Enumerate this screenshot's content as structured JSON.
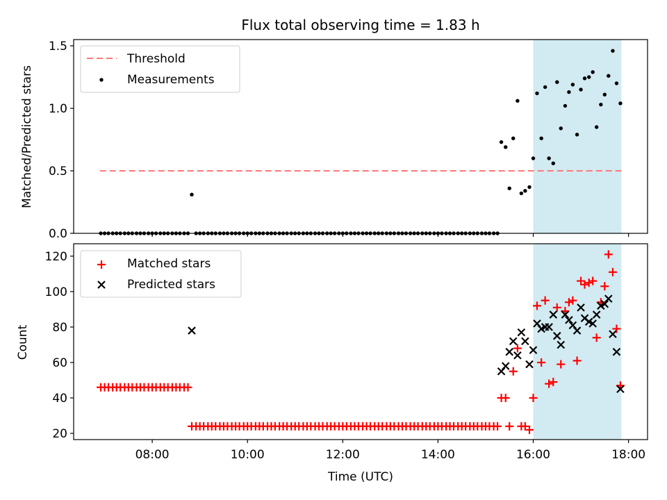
{
  "figure": {
    "title": "Flux total observing time = 1.83 h",
    "xlabel": "Time (UTC)",
    "x_ticks": [
      "08:00",
      "10:00",
      "12:00",
      "14:00",
      "16:00",
      "18:00"
    ],
    "x_tick_hours": [
      8,
      10,
      12,
      14,
      16,
      18
    ],
    "xlim_hours": [
      6.35,
      18.4
    ],
    "shaded_span_hours": [
      16.0,
      17.85
    ],
    "colors": {
      "shade": "#add8e6",
      "threshold": "#ff7777",
      "matched": "#ff0000",
      "predicted": "#000000",
      "measurement": "#000000"
    }
  },
  "chart_data": [
    {
      "type": "scatter",
      "ylabel": "Matched/Predicted stars",
      "ylim": [
        0,
        1.55
      ],
      "y_ticks": [
        "0.0",
        "0.5",
        "1.0",
        "1.5"
      ],
      "y_tick_values": [
        0,
        0.5,
        1.0,
        1.5
      ],
      "legend": {
        "placement": "top-left",
        "entries": [
          "Threshold",
          "Measurements"
        ]
      },
      "threshold": {
        "name": "Threshold",
        "y": 0.5,
        "x_range": [
          6.9,
          17.85
        ]
      },
      "series": [
        {
          "name": "Measurements",
          "x": [
            6.92,
            7.0,
            7.08,
            7.17,
            7.25,
            7.33,
            7.42,
            7.5,
            7.58,
            7.67,
            7.75,
            7.83,
            7.92,
            8.0,
            8.08,
            8.17,
            8.25,
            8.33,
            8.42,
            8.5,
            8.58,
            8.67,
            8.75,
            8.83,
            8.92,
            9.0,
            9.08,
            9.17,
            9.25,
            9.33,
            9.42,
            9.5,
            9.58,
            9.67,
            9.75,
            9.83,
            9.92,
            10.0,
            10.08,
            10.17,
            10.25,
            10.33,
            10.42,
            10.5,
            10.58,
            10.67,
            10.75,
            10.83,
            10.92,
            11.0,
            11.08,
            11.17,
            11.25,
            11.33,
            11.42,
            11.5,
            11.58,
            11.67,
            11.75,
            11.83,
            11.92,
            12.0,
            12.08,
            12.17,
            12.25,
            12.33,
            12.42,
            12.5,
            12.58,
            12.67,
            12.75,
            12.83,
            12.92,
            13.0,
            13.08,
            13.17,
            13.25,
            13.33,
            13.42,
            13.5,
            13.58,
            13.67,
            13.75,
            13.83,
            13.92,
            14.0,
            14.08,
            14.17,
            14.25,
            14.33,
            14.42,
            14.5,
            14.58,
            14.67,
            14.75,
            14.83,
            14.92,
            15.0,
            15.08,
            15.17,
            15.25,
            15.33,
            15.42,
            15.5,
            15.58,
            15.67,
            15.75,
            15.83,
            15.92,
            16.0,
            16.08,
            16.17,
            16.25,
            16.33,
            16.42,
            16.5,
            16.58,
            16.67,
            16.75,
            16.83,
            16.92,
            17.0,
            17.08,
            17.17,
            17.25,
            17.33,
            17.42,
            17.5,
            17.58,
            17.67,
            17.75,
            17.83
          ],
          "values": [
            0,
            0,
            0,
            0,
            0,
            0,
            0,
            0,
            0,
            0,
            0,
            0,
            0,
            0,
            0,
            0,
            0,
            0,
            0,
            0,
            0,
            0,
            0,
            0.31,
            0,
            0,
            0,
            0,
            0,
            0,
            0,
            0,
            0,
            0,
            0,
            0,
            0,
            0,
            0,
            0,
            0,
            0,
            0,
            0,
            0,
            0,
            0,
            0,
            0,
            0,
            0,
            0,
            0,
            0,
            0,
            0,
            0,
            0,
            0,
            0,
            0,
            0,
            0,
            0,
            0,
            0,
            0,
            0,
            0,
            0,
            0,
            0,
            0,
            0,
            0,
            0,
            0,
            0,
            0,
            0,
            0,
            0,
            0,
            0,
            0,
            0,
            0,
            0,
            0,
            0,
            0,
            0,
            0,
            0,
            0,
            0,
            0,
            0,
            0,
            0,
            0,
            0.73,
            0.69,
            0.36,
            0.76,
            1.06,
            0.32,
            0.34,
            0.37,
            0.6,
            1.12,
            0.76,
            1.17,
            0.6,
            0.56,
            1.21,
            0.84,
            1.02,
            1.13,
            1.19,
            0.79,
            1.15,
            1.24,
            1.25,
            1.29,
            0.85,
            1.03,
            1.11,
            1.26,
            1.46,
            1.2,
            1.04
          ]
        }
      ]
    },
    {
      "type": "scatter",
      "ylabel": "Count",
      "ylim": [
        16.5,
        127
      ],
      "y_ticks": [
        "20",
        "40",
        "60",
        "80",
        "100",
        "120"
      ],
      "y_tick_values": [
        20,
        40,
        60,
        80,
        100,
        120
      ],
      "legend": {
        "placement": "top-left",
        "entries": [
          "Matched stars",
          "Predicted stars"
        ]
      },
      "series": [
        {
          "name": "Matched stars",
          "x": [
            6.92,
            7.0,
            7.08,
            7.17,
            7.25,
            7.33,
            7.42,
            7.5,
            7.58,
            7.67,
            7.75,
            7.83,
            7.92,
            8.0,
            8.08,
            8.17,
            8.25,
            8.33,
            8.42,
            8.5,
            8.58,
            8.67,
            8.75,
            8.83,
            8.92,
            9.0,
            9.08,
            9.17,
            9.25,
            9.33,
            9.42,
            9.5,
            9.58,
            9.67,
            9.75,
            9.83,
            9.92,
            10.0,
            10.08,
            10.17,
            10.25,
            10.33,
            10.42,
            10.5,
            10.58,
            10.67,
            10.75,
            10.83,
            10.92,
            11.0,
            11.08,
            11.17,
            11.25,
            11.33,
            11.42,
            11.5,
            11.58,
            11.67,
            11.75,
            11.83,
            11.92,
            12.0,
            12.08,
            12.17,
            12.25,
            12.33,
            12.42,
            12.5,
            12.58,
            12.67,
            12.75,
            12.83,
            12.92,
            13.0,
            13.08,
            13.17,
            13.25,
            13.33,
            13.42,
            13.5,
            13.58,
            13.67,
            13.75,
            13.83,
            13.92,
            14.0,
            14.08,
            14.17,
            14.25,
            14.33,
            14.42,
            14.5,
            14.58,
            14.67,
            14.75,
            14.83,
            14.92,
            15.0,
            15.08,
            15.17,
            15.25,
            15.33,
            15.42,
            15.5,
            15.58,
            15.67,
            15.75,
            15.83,
            15.92,
            16.0,
            16.08,
            16.17,
            16.25,
            16.33,
            16.42,
            16.5,
            16.58,
            16.67,
            16.75,
            16.83,
            16.92,
            17.0,
            17.08,
            17.17,
            17.25,
            17.33,
            17.42,
            17.5,
            17.58,
            17.67,
            17.75,
            17.83
          ],
          "values": [
            46,
            46,
            46,
            46,
            46,
            46,
            46,
            46,
            46,
            46,
            46,
            46,
            46,
            46,
            46,
            46,
            46,
            46,
            46,
            46,
            46,
            46,
            46,
            24,
            24,
            24,
            24,
            24,
            24,
            24,
            24,
            24,
            24,
            24,
            24,
            24,
            24,
            24,
            24,
            24,
            24,
            24,
            24,
            24,
            24,
            24,
            24,
            24,
            24,
            24,
            24,
            24,
            24,
            24,
            24,
            24,
            24,
            24,
            24,
            24,
            24,
            24,
            24,
            24,
            24,
            24,
            24,
            24,
            24,
            24,
            24,
            24,
            24,
            24,
            24,
            24,
            24,
            24,
            24,
            24,
            24,
            24,
            24,
            24,
            24,
            24,
            24,
            24,
            24,
            24,
            24,
            24,
            24,
            24,
            24,
            24,
            24,
            24,
            24,
            24,
            24,
            40,
            40,
            24,
            55,
            68,
            24,
            24,
            22,
            40,
            92,
            60,
            95,
            48,
            49,
            91,
            59,
            89,
            94,
            95,
            61,
            106,
            104,
            105,
            106,
            74,
            94,
            103,
            121,
            111,
            79,
            47
          ]
        },
        {
          "name": "Predicted stars",
          "x": [
            8.83,
            15.33,
            15.42,
            15.5,
            15.58,
            15.67,
            15.75,
            15.83,
            15.92,
            16.0,
            16.08,
            16.17,
            16.25,
            16.33,
            16.42,
            16.5,
            16.58,
            16.67,
            16.75,
            16.83,
            16.92,
            17.0,
            17.08,
            17.17,
            17.25,
            17.33,
            17.42,
            17.5,
            17.58,
            17.67,
            17.75,
            17.83
          ],
          "values": [
            78,
            55,
            58,
            66,
            72,
            64,
            77,
            72,
            59,
            67,
            82,
            79,
            80,
            80,
            87,
            75,
            70,
            87,
            84,
            81,
            78,
            91,
            85,
            83,
            82,
            87,
            92,
            93,
            96,
            76,
            66,
            45
          ]
        }
      ]
    }
  ]
}
